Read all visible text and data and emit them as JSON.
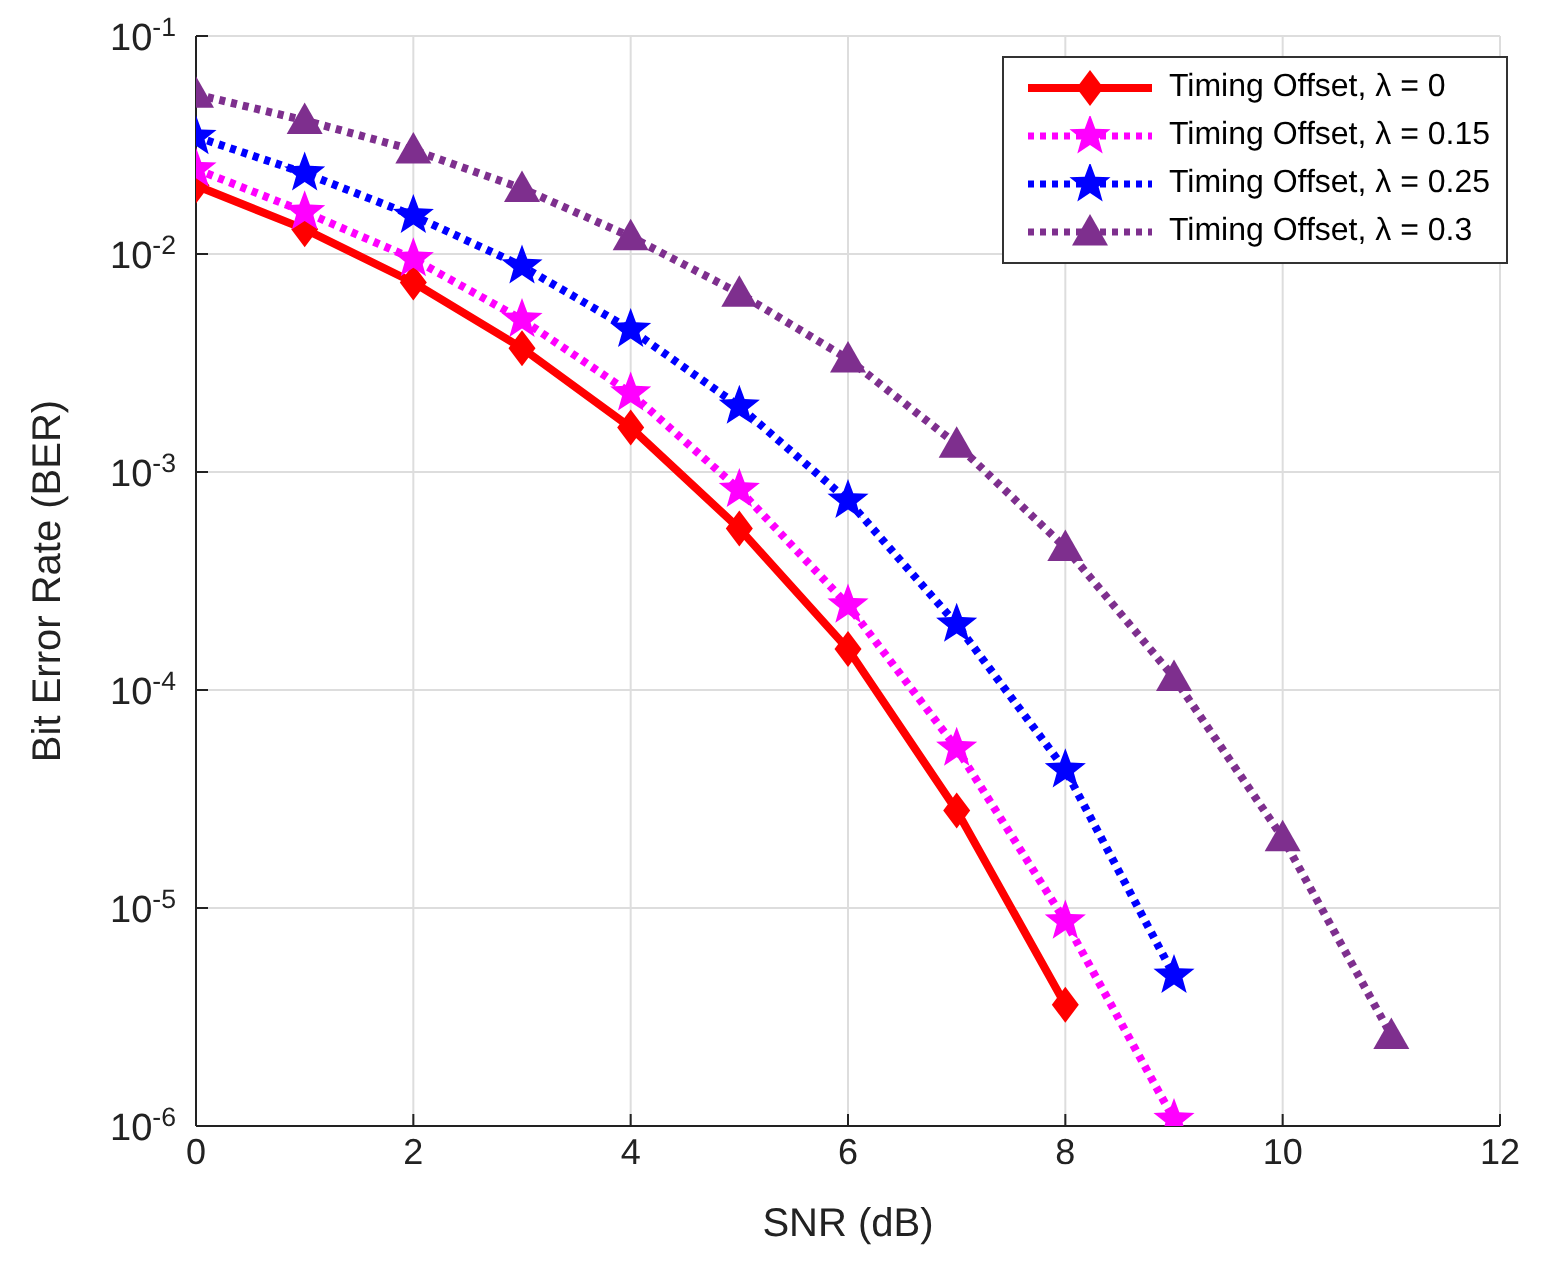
{
  "chart_data": {
    "type": "line",
    "xlabel": "SNR (dB)",
    "ylabel": "Bit Error Rate (BER)",
    "log": "y",
    "grid": true,
    "legend": "top right",
    "x": [
      0,
      1,
      2,
      3,
      4,
      5,
      6,
      7,
      8,
      9,
      10,
      11
    ],
    "xlim": [
      0,
      12
    ],
    "xticks": [
      0,
      2,
      4,
      6,
      8,
      10,
      12
    ],
    "ylim": [
      1e-06,
      0.1
    ],
    "yticks": [
      {
        "value": 1e-06,
        "label": "10$^{-6}$"
      },
      {
        "value": 1e-05,
        "label": "10$^{-5}$"
      },
      {
        "value": 0.0001,
        "label": "10$^{-4}$"
      },
      {
        "value": 0.001,
        "label": "10$^{-3}$"
      },
      {
        "value": 0.01,
        "label": "10$^{-2}$"
      },
      {
        "value": 0.1,
        "label": "10$^{-1}$"
      }
    ],
    "series": [
      {
        "name": "Timing Offset, λ = 0",
        "color": "#ff0000",
        "marker": "diamond",
        "line_style": "solid",
        "values": [
          0.0206,
          0.013,
          0.0074,
          0.0037,
          0.0016,
          0.00055,
          0.000154,
          2.8e-05,
          3.6e-06,
          null,
          null,
          null
        ]
      },
      {
        "name": "Timing Offset, λ = 0.15",
        "color": "#ff00ff",
        "marker": "star",
        "line_style": "dotted",
        "values": [
          0.0245,
          0.0156,
          0.0095,
          0.005,
          0.0023,
          0.00083,
          0.000245,
          5.4e-05,
          8.7e-06,
          1.07e-06,
          null,
          null
        ]
      },
      {
        "name": "Timing Offset, λ = 0.25",
        "color": "#0000ff",
        "marker": "star",
        "line_style": "dotted",
        "values": [
          0.0345,
          0.0235,
          0.015,
          0.0088,
          0.0045,
          0.002,
          0.00074,
          0.0002,
          4.3e-05,
          4.9e-06,
          null,
          null
        ]
      },
      {
        "name": "Timing Offset, λ = 0.3",
        "color": "#7e2f8e",
        "marker": "triangle",
        "line_style": "dotted",
        "values": [
          0.054,
          0.041,
          0.03,
          0.02,
          0.012,
          0.0066,
          0.0033,
          0.00134,
          0.00045,
          0.000114,
          2.1e-05,
          2.6e-06
        ]
      }
    ]
  }
}
